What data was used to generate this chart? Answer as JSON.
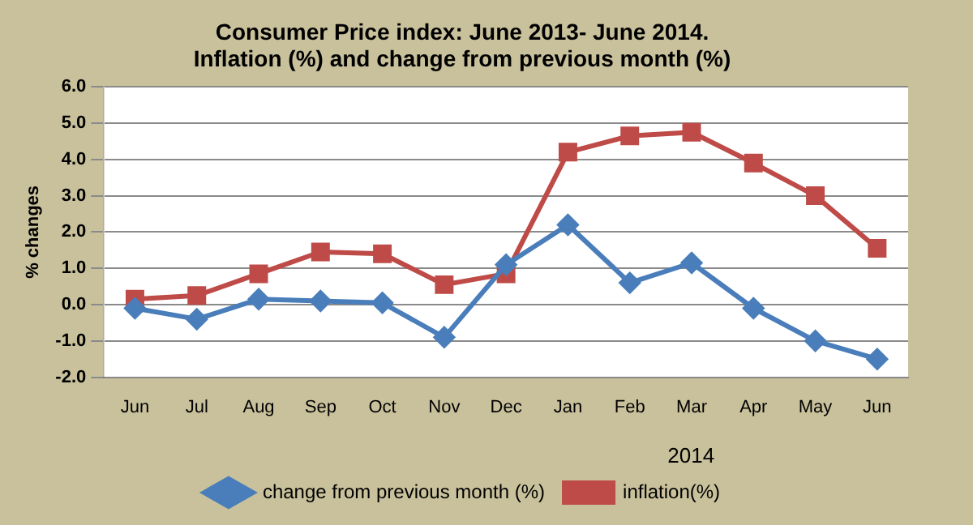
{
  "chart_data": {
    "type": "line",
    "title": [
      "Consumer Price index: June 2013- June 2014.",
      "Inflation (%) and change from previous month (%)"
    ],
    "ylabel": "% changes",
    "categories": [
      "Jun",
      "Jul",
      "Aug",
      "Sep",
      "Oct",
      "Nov",
      "Dec",
      "Jan",
      "Feb",
      "Mar",
      "Apr",
      "May",
      "Jun"
    ],
    "series": [
      {
        "name": "change from previous month (%)",
        "color": "#4a7ebb",
        "marker": "diamond",
        "values": [
          -0.1,
          -0.4,
          0.15,
          0.1,
          0.05,
          -0.9,
          1.1,
          2.2,
          0.6,
          1.15,
          -0.1,
          -1.0,
          -1.5
        ]
      },
      {
        "name": "inflation(%)",
        "color": "#be4b48",
        "marker": "square",
        "values": [
          0.15,
          0.25,
          0.85,
          1.45,
          1.4,
          0.55,
          0.85,
          4.2,
          4.65,
          4.75,
          3.9,
          3.0,
          1.55
        ]
      }
    ],
    "ylim": [
      -2,
      6
    ],
    "yticks": [
      {
        "value": -2,
        "label": "-2.0"
      },
      {
        "value": -1,
        "label": "-1.0"
      },
      {
        "value": 0,
        "label": "0.0"
      },
      {
        "value": 1,
        "label": "1.0"
      },
      {
        "value": 2,
        "label": "2.0"
      },
      {
        "value": 3,
        "label": "3.0"
      },
      {
        "value": 4,
        "label": "4.0"
      },
      {
        "value": 5,
        "label": "5.0"
      },
      {
        "value": 6,
        "label": "6.0"
      }
    ],
    "grid": "y",
    "legend": "bottom",
    "line_style": "solid",
    "annotations": [
      "2014"
    ]
  }
}
